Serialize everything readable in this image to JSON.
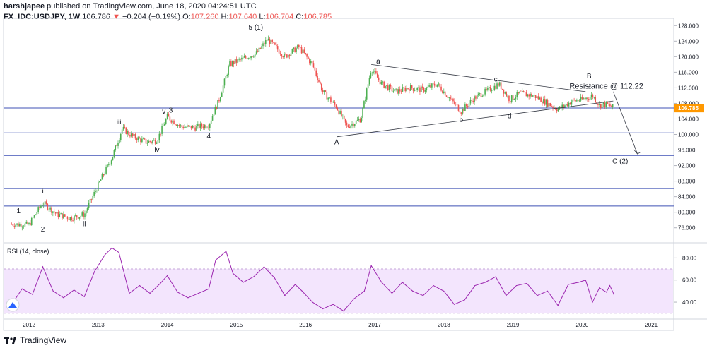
{
  "header": {
    "author": "harshjapee",
    "published": "published on TradingView.com, June 18, 2020 04:24:51 UTC",
    "symbol": "FX_IDC:USDJPY, 1W",
    "last": "106.786",
    "change": "−0.204 (−0.19%)",
    "o_label": "O:",
    "o": "107.260",
    "h_label": "H:",
    "h": "107.640",
    "l_label": "L:",
    "l": "106.704",
    "c_label": "C:",
    "c": "106.785"
  },
  "logo": {
    "text": "TradingView"
  },
  "colors": {
    "up": "#26a69a",
    "down": "#ef5350",
    "candle_up": "#4caf50",
    "candle_down": "#ef5350",
    "hline": "#3f51b5",
    "rsi_line": "#9c27b0",
    "rsi_band": "#f3e5fd",
    "price_tag": "#ff9800"
  },
  "chart_data": [
    {
      "type": "candlestick",
      "title": "FX_IDC:USDJPY, 1W",
      "x_ticks": [
        "2012",
        "2013",
        "2014",
        "2015",
        "2016",
        "2017",
        "2018",
        "2019",
        "2020",
        "2021"
      ],
      "y_ticks": [
        "76.000",
        "80.000",
        "84.000",
        "88.000",
        "92.000",
        "96.000",
        "100.000",
        "104.000",
        "108.000",
        "112.000",
        "116.000",
        "120.000",
        "124.000",
        "128.000"
      ],
      "ylim": [
        72.5,
        129.5
      ],
      "last_price_label": "106.785",
      "horizontal_lines": [
        106.8,
        100.4,
        94.6,
        86.1,
        81.6
      ],
      "trendlines": [
        {
          "x": [
            2016.95,
            2020.05
          ],
          "y": [
            118.0,
            111.0
          ]
        },
        {
          "x": [
            2016.45,
            2020.45
          ],
          "y": [
            99.4,
            108.6
          ]
        },
        {
          "x": [
            2020.45,
            2020.8
          ],
          "y": [
            111.0,
            95.0
          ]
        }
      ],
      "wave_labels": [
        {
          "text": "1",
          "x": 2011.85,
          "y": 79.8
        },
        {
          "text": "2",
          "x": 2012.2,
          "y": 75.0
        },
        {
          "text": "i",
          "x": 2012.2,
          "y": 84.8
        },
        {
          "text": "ii",
          "x": 2012.8,
          "y": 76.4
        },
        {
          "text": "iii",
          "x": 2013.3,
          "y": 102.6
        },
        {
          "text": "iv",
          "x": 2013.85,
          "y": 95.5
        },
        {
          "text": "v",
          "x": 2013.95,
          "y": 105.4
        },
        {
          "text": "3",
          "x": 2014.05,
          "y": 105.6
        },
        {
          "text": "4",
          "x": 2014.6,
          "y": 99.0
        },
        {
          "text": "5 (1)",
          "x": 2015.28,
          "y": 127.0
        },
        {
          "text": "a",
          "x": 2017.05,
          "y": 118.2
        },
        {
          "text": "A",
          "x": 2016.45,
          "y": 97.5
        },
        {
          "text": "b",
          "x": 2018.25,
          "y": 103.2
        },
        {
          "text": "c",
          "x": 2018.75,
          "y": 113.6
        },
        {
          "text": "d",
          "x": 2018.95,
          "y": 104.2
        },
        {
          "text": "B",
          "x": 2020.1,
          "y": 114.4
        },
        {
          "text": "e",
          "x": 2020.1,
          "y": 111.8
        },
        {
          "text": "C (2)",
          "x": 2020.55,
          "y": 92.6
        },
        {
          "text": "Resistance @ 112.22",
          "x": 2020.35,
          "y": 111.8
        }
      ],
      "weekly_closes_by_quarter": [
        {
          "x": 2011.75,
          "y": 76.9
        },
        {
          "x": 2012.0,
          "y": 76.8
        },
        {
          "x": 2012.2,
          "y": 82.5
        },
        {
          "x": 2012.4,
          "y": 79.5
        },
        {
          "x": 2012.6,
          "y": 78.5
        },
        {
          "x": 2012.8,
          "y": 79.4
        },
        {
          "x": 2013.0,
          "y": 87.0
        },
        {
          "x": 2013.2,
          "y": 94.0
        },
        {
          "x": 2013.35,
          "y": 101.5
        },
        {
          "x": 2013.5,
          "y": 99.5
        },
        {
          "x": 2013.7,
          "y": 98.0
        },
        {
          "x": 2013.85,
          "y": 98.5
        },
        {
          "x": 2014.0,
          "y": 104.5
        },
        {
          "x": 2014.2,
          "y": 102.0
        },
        {
          "x": 2014.4,
          "y": 101.8
        },
        {
          "x": 2014.6,
          "y": 102.5
        },
        {
          "x": 2014.75,
          "y": 109.0
        },
        {
          "x": 2014.9,
          "y": 118.0
        },
        {
          "x": 2015.1,
          "y": 119.5
        },
        {
          "x": 2015.3,
          "y": 121.0
        },
        {
          "x": 2015.45,
          "y": 124.5
        },
        {
          "x": 2015.7,
          "y": 120.0
        },
        {
          "x": 2015.9,
          "y": 122.5
        },
        {
          "x": 2016.1,
          "y": 118.0
        },
        {
          "x": 2016.25,
          "y": 111.0
        },
        {
          "x": 2016.45,
          "y": 107.0
        },
        {
          "x": 2016.6,
          "y": 102.0
        },
        {
          "x": 2016.8,
          "y": 104.0
        },
        {
          "x": 2016.95,
          "y": 117.0
        },
        {
          "x": 2017.1,
          "y": 113.0
        },
        {
          "x": 2017.3,
          "y": 111.0
        },
        {
          "x": 2017.5,
          "y": 112.0
        },
        {
          "x": 2017.7,
          "y": 111.5
        },
        {
          "x": 2017.9,
          "y": 113.0
        },
        {
          "x": 2018.1,
          "y": 109.0
        },
        {
          "x": 2018.25,
          "y": 106.0
        },
        {
          "x": 2018.45,
          "y": 109.5
        },
        {
          "x": 2018.6,
          "y": 111.0
        },
        {
          "x": 2018.8,
          "y": 113.0
        },
        {
          "x": 2018.95,
          "y": 109.0
        },
        {
          "x": 2019.1,
          "y": 110.5
        },
        {
          "x": 2019.3,
          "y": 110.0
        },
        {
          "x": 2019.5,
          "y": 108.0
        },
        {
          "x": 2019.65,
          "y": 106.5
        },
        {
          "x": 2019.85,
          "y": 108.5
        },
        {
          "x": 2020.0,
          "y": 109.0
        },
        {
          "x": 2020.15,
          "y": 110.0
        },
        {
          "x": 2020.25,
          "y": 107.5
        },
        {
          "x": 2020.35,
          "y": 107.8
        },
        {
          "x": 2020.46,
          "y": 106.8
        }
      ]
    },
    {
      "type": "line",
      "title": "RSI (14, close)",
      "y_ticks": [
        "40.00",
        "60.00",
        "80.00"
      ],
      "ylim": [
        26,
        93
      ],
      "band": [
        30,
        70
      ],
      "points": [
        {
          "x": 2011.75,
          "y": 38
        },
        {
          "x": 2011.9,
          "y": 52
        },
        {
          "x": 2012.05,
          "y": 47
        },
        {
          "x": 2012.2,
          "y": 72
        },
        {
          "x": 2012.35,
          "y": 50
        },
        {
          "x": 2012.5,
          "y": 44
        },
        {
          "x": 2012.65,
          "y": 51
        },
        {
          "x": 2012.8,
          "y": 45
        },
        {
          "x": 2012.95,
          "y": 68
        },
        {
          "x": 2013.1,
          "y": 83
        },
        {
          "x": 2013.2,
          "y": 89
        },
        {
          "x": 2013.3,
          "y": 85
        },
        {
          "x": 2013.45,
          "y": 48
        },
        {
          "x": 2013.6,
          "y": 55
        },
        {
          "x": 2013.75,
          "y": 48
        },
        {
          "x": 2013.9,
          "y": 57
        },
        {
          "x": 2014.0,
          "y": 64
        },
        {
          "x": 2014.15,
          "y": 49
        },
        {
          "x": 2014.3,
          "y": 44
        },
        {
          "x": 2014.45,
          "y": 48
        },
        {
          "x": 2014.6,
          "y": 52
        },
        {
          "x": 2014.7,
          "y": 78
        },
        {
          "x": 2014.85,
          "y": 86
        },
        {
          "x": 2014.95,
          "y": 66
        },
        {
          "x": 2015.1,
          "y": 58
        },
        {
          "x": 2015.25,
          "y": 63
        },
        {
          "x": 2015.4,
          "y": 72
        },
        {
          "x": 2015.55,
          "y": 62
        },
        {
          "x": 2015.7,
          "y": 46
        },
        {
          "x": 2015.85,
          "y": 56
        },
        {
          "x": 2015.95,
          "y": 50
        },
        {
          "x": 2016.1,
          "y": 40
        },
        {
          "x": 2016.25,
          "y": 34
        },
        {
          "x": 2016.4,
          "y": 38
        },
        {
          "x": 2016.55,
          "y": 32
        },
        {
          "x": 2016.7,
          "y": 43
        },
        {
          "x": 2016.85,
          "y": 50
        },
        {
          "x": 2016.95,
          "y": 73
        },
        {
          "x": 2017.1,
          "y": 58
        },
        {
          "x": 2017.25,
          "y": 48
        },
        {
          "x": 2017.4,
          "y": 58
        },
        {
          "x": 2017.55,
          "y": 50
        },
        {
          "x": 2017.7,
          "y": 46
        },
        {
          "x": 2017.85,
          "y": 55
        },
        {
          "x": 2018.0,
          "y": 50
        },
        {
          "x": 2018.15,
          "y": 38
        },
        {
          "x": 2018.3,
          "y": 42
        },
        {
          "x": 2018.45,
          "y": 55
        },
        {
          "x": 2018.6,
          "y": 58
        },
        {
          "x": 2018.75,
          "y": 63
        },
        {
          "x": 2018.9,
          "y": 46
        },
        {
          "x": 2019.05,
          "y": 55
        },
        {
          "x": 2019.2,
          "y": 57
        },
        {
          "x": 2019.35,
          "y": 46
        },
        {
          "x": 2019.5,
          "y": 50
        },
        {
          "x": 2019.65,
          "y": 37
        },
        {
          "x": 2019.8,
          "y": 56
        },
        {
          "x": 2019.95,
          "y": 58
        },
        {
          "x": 2020.05,
          "y": 60
        },
        {
          "x": 2020.15,
          "y": 40
        },
        {
          "x": 2020.25,
          "y": 53
        },
        {
          "x": 2020.35,
          "y": 49
        },
        {
          "x": 2020.4,
          "y": 55
        },
        {
          "x": 2020.46,
          "y": 47
        }
      ]
    }
  ]
}
